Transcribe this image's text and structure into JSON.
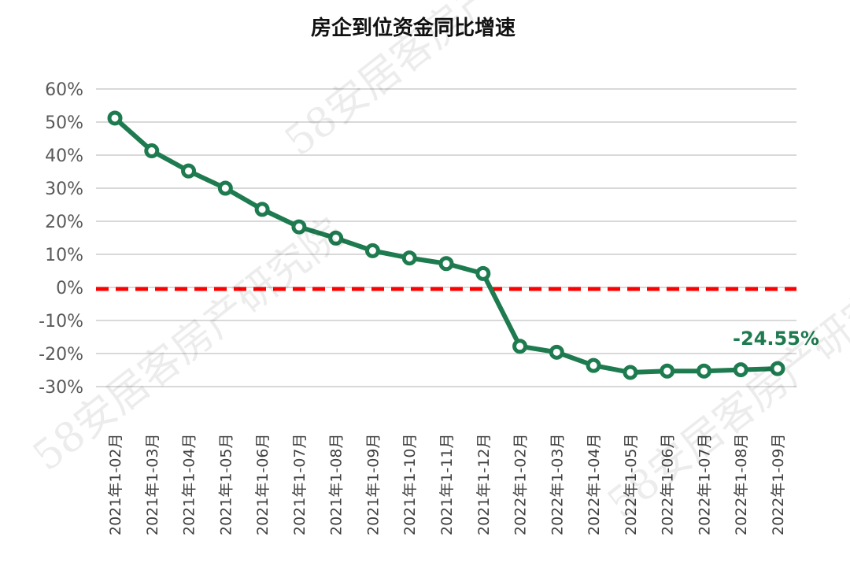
{
  "watermark": "58安居客房产研究院",
  "colors": {
    "line": "#1e7b4f",
    "baseline": "#ff0000",
    "grid": "#d9d9d9",
    "label": "#1e7b4f"
  },
  "chart_data": {
    "type": "line",
    "title": "房企到位资金同比增速",
    "xlabel": "",
    "ylabel": "",
    "ylim": [
      -30,
      60
    ],
    "y_ticks": [
      "60%",
      "50%",
      "40%",
      "30%",
      "20%",
      "10%",
      "0%",
      "-10%",
      "-20%",
      "-30%"
    ],
    "grid": true,
    "legend": "none",
    "reference_line": {
      "y": 0,
      "style": "dashed",
      "color": "#ff0000"
    },
    "categories": [
      "2021年1-02月",
      "2021年1-03月",
      "2021年1-04月",
      "2021年1-05月",
      "2021年1-06月",
      "2021年1-07月",
      "2021年1-08月",
      "2021年1-09月",
      "2021年1-10月",
      "2021年1-11月",
      "2021年1-12月",
      "2022年1-02月",
      "2022年1-03月",
      "2022年1-04月",
      "2022年1-05月",
      "2022年1-06月",
      "2022年1-07月",
      "2022年1-08月",
      "2022年1-09月"
    ],
    "series": [
      {
        "values": [
          51.2,
          41.3,
          35.2,
          30.0,
          23.6,
          18.3,
          14.9,
          11.1,
          8.9,
          7.2,
          4.2,
          -17.8,
          -19.6,
          -23.6,
          -25.7,
          -25.3,
          -25.3,
          -24.9,
          -24.55
        ]
      }
    ],
    "data_labels": [
      {
        "index": 18,
        "text": "-24.55%"
      }
    ]
  }
}
